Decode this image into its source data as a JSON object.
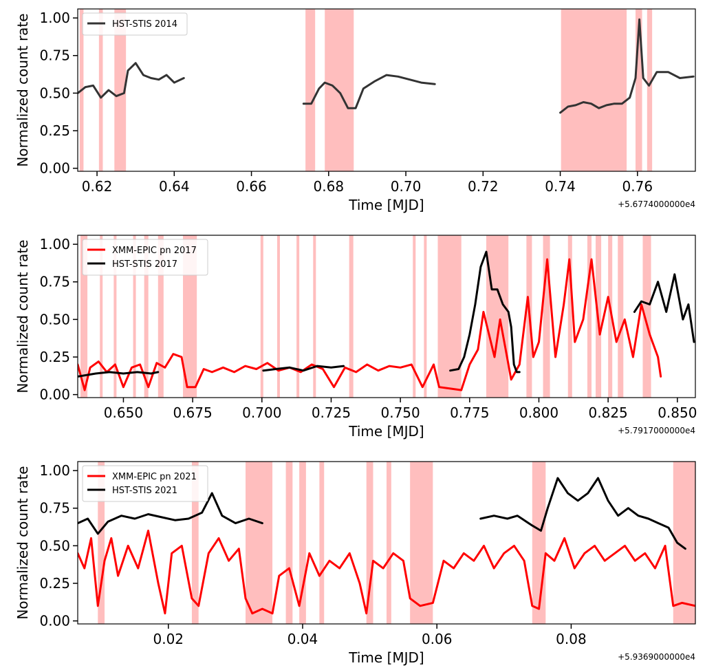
{
  "chart_data": [
    {
      "type": "line",
      "xlabel": "Time [MJD]",
      "ylabel": "Normalized count rate",
      "offset_text": "+5.6774000000e4",
      "xlim": [
        0.615,
        0.775
      ],
      "ylim": [
        -0.02,
        1.06
      ],
      "xticks": [
        0.62,
        0.64,
        0.66,
        0.68,
        0.7,
        0.72,
        0.74,
        0.76
      ],
      "xtick_labels": [
        "0.62",
        "0.64",
        "0.66",
        "0.68",
        "0.70",
        "0.72",
        "0.74",
        "0.76"
      ],
      "yticks": [
        0.0,
        0.25,
        0.5,
        0.75,
        1.0
      ],
      "ytick_labels": [
        "0.00",
        "0.25",
        "0.50",
        "0.75",
        "1.00"
      ],
      "legend_position": "top-left",
      "shaded_color": "#ffb3b3",
      "shaded_regions": [
        [
          0.6155,
          0.6165
        ],
        [
          0.6205,
          0.6215
        ],
        [
          0.6245,
          0.6275
        ],
        [
          0.674,
          0.6765
        ],
        [
          0.679,
          0.6865
        ],
        [
          0.7402,
          0.7572
        ],
        [
          0.7595,
          0.7612
        ],
        [
          0.7625,
          0.7638
        ]
      ],
      "series": [
        {
          "name": "HST-STIS 2014",
          "color": "#333333",
          "segments": [
            {
              "x": [
                0.615,
                0.617,
                0.619,
                0.621,
                0.623,
                0.625,
                0.627,
                0.628,
                0.63,
                0.632,
                0.634,
                0.636,
                0.638,
                0.64,
                0.6425
              ],
              "y": [
                0.5,
                0.54,
                0.55,
                0.47,
                0.52,
                0.48,
                0.5,
                0.65,
                0.7,
                0.62,
                0.6,
                0.59,
                0.62,
                0.57,
                0.6
              ]
            },
            {
              "x": [
                0.6735,
                0.6755,
                0.6775,
                0.679,
                0.681,
                0.683,
                0.685,
                0.687,
                0.689,
                0.692,
                0.695,
                0.698,
                0.701,
                0.704,
                0.7075
              ],
              "y": [
                0.43,
                0.43,
                0.53,
                0.57,
                0.55,
                0.5,
                0.4,
                0.4,
                0.53,
                0.58,
                0.62,
                0.61,
                0.59,
                0.57,
                0.56
              ]
            },
            {
              "x": [
                0.74,
                0.742,
                0.744,
                0.746,
                0.748,
                0.75,
                0.752,
                0.754,
                0.756,
                0.758,
                0.7595,
                0.7605,
                0.7615,
                0.763,
                0.765,
                0.768,
                0.771,
                0.7745
              ],
              "y": [
                0.37,
                0.41,
                0.42,
                0.44,
                0.43,
                0.4,
                0.42,
                0.43,
                0.43,
                0.47,
                0.6,
                0.99,
                0.6,
                0.55,
                0.64,
                0.64,
                0.6,
                0.61
              ]
            }
          ]
        }
      ]
    },
    {
      "type": "line",
      "xlabel": "Time [MJD]",
      "ylabel": "Normalized count rate",
      "offset_text": "+5.7917000000e4",
      "xlim": [
        0.6335,
        0.8565
      ],
      "ylim": [
        -0.02,
        1.06
      ],
      "xticks": [
        0.65,
        0.675,
        0.7,
        0.725,
        0.75,
        0.775,
        0.8,
        0.825,
        0.85
      ],
      "xtick_labels": [
        "0.650",
        "0.675",
        "0.700",
        "0.725",
        "0.750",
        "0.775",
        "0.800",
        "0.825",
        "0.850"
      ],
      "yticks": [
        0.0,
        0.25,
        0.5,
        0.75,
        1.0
      ],
      "ytick_labels": [
        "0.00",
        "0.25",
        "0.50",
        "0.75",
        "1.00"
      ],
      "legend_position": "top-left",
      "shaded_color": "#ffb3b3",
      "shaded_regions": [
        [
          0.6345,
          0.637
        ],
        [
          0.6415,
          0.6425
        ],
        [
          0.6465,
          0.6475
        ],
        [
          0.6535,
          0.6545
        ],
        [
          0.6575,
          0.659
        ],
        [
          0.6625,
          0.6645
        ],
        [
          0.6715,
          0.6765
        ],
        [
          0.6995,
          0.7005
        ],
        [
          0.7055,
          0.7065
        ],
        [
          0.7125,
          0.7135
        ],
        [
          0.7185,
          0.7195
        ],
        [
          0.7315,
          0.733
        ],
        [
          0.7545,
          0.7555
        ],
        [
          0.7585,
          0.7595
        ],
        [
          0.7635,
          0.772
        ],
        [
          0.781,
          0.789
        ],
        [
          0.7955,
          0.7975
        ],
        [
          0.8015,
          0.804
        ],
        [
          0.8105,
          0.812
        ],
        [
          0.8175,
          0.819
        ],
        [
          0.8205,
          0.8225
        ],
        [
          0.825,
          0.8265
        ],
        [
          0.8285,
          0.8305
        ],
        [
          0.8375,
          0.8405
        ]
      ],
      "series": [
        {
          "name": "XMM-EPIC pn 2017",
          "color": "#ff0000",
          "x": [
            0.6335,
            0.636,
            0.638,
            0.641,
            0.644,
            0.647,
            0.65,
            0.653,
            0.656,
            0.659,
            0.662,
            0.665,
            0.668,
            0.671,
            0.673,
            0.676,
            0.679,
            0.682,
            0.686,
            0.69,
            0.694,
            0.698,
            0.702,
            0.706,
            0.71,
            0.714,
            0.718,
            0.722,
            0.726,
            0.73,
            0.734,
            0.738,
            0.742,
            0.746,
            0.75,
            0.754,
            0.758,
            0.762,
            0.764,
            0.768,
            0.772,
            0.775,
            0.778,
            0.78,
            0.782,
            0.784,
            0.786,
            0.788,
            0.79,
            0.793,
            0.796,
            0.798,
            0.8,
            0.803,
            0.806,
            0.809,
            0.811,
            0.813,
            0.816,
            0.819,
            0.822,
            0.825,
            0.828,
            0.831,
            0.834,
            0.837,
            0.84,
            0.843,
            0.844
          ],
          "y": [
            0.2,
            0.03,
            0.18,
            0.22,
            0.15,
            0.2,
            0.05,
            0.18,
            0.2,
            0.05,
            0.21,
            0.18,
            0.27,
            0.25,
            0.05,
            0.05,
            0.17,
            0.15,
            0.18,
            0.15,
            0.19,
            0.17,
            0.21,
            0.16,
            0.18,
            0.15,
            0.2,
            0.17,
            0.05,
            0.18,
            0.15,
            0.2,
            0.16,
            0.19,
            0.18,
            0.2,
            0.05,
            0.2,
            0.05,
            0.04,
            0.03,
            0.2,
            0.3,
            0.55,
            0.4,
            0.25,
            0.5,
            0.3,
            0.1,
            0.2,
            0.65,
            0.25,
            0.35,
            0.9,
            0.25,
            0.6,
            0.9,
            0.35,
            0.5,
            0.9,
            0.4,
            0.65,
            0.35,
            0.5,
            0.25,
            0.6,
            0.4,
            0.25,
            0.12
          ]
        },
        {
          "name": "HST-STIS 2017",
          "color": "#000000",
          "segments": [
            {
              "x": [
                0.6335,
                0.64,
                0.645,
                0.65,
                0.655,
                0.66,
                0.6625
              ],
              "y": [
                0.12,
                0.14,
                0.15,
                0.14,
                0.15,
                0.14,
                0.15
              ]
            },
            {
              "x": [
                0.7005,
                0.705,
                0.71,
                0.715,
                0.72,
                0.725,
                0.7295
              ],
              "y": [
                0.16,
                0.17,
                0.18,
                0.16,
                0.19,
                0.18,
                0.19
              ]
            },
            {
              "x": [
                0.768,
                0.771,
                0.773,
                0.775,
                0.777,
                0.779,
                0.781,
                0.783,
                0.785,
                0.787,
                0.789,
                0.79,
                0.791,
                0.792,
                0.793
              ],
              "y": [
                0.16,
                0.17,
                0.25,
                0.4,
                0.6,
                0.85,
                0.95,
                0.7,
                0.7,
                0.6,
                0.55,
                0.45,
                0.2,
                0.15,
                0.15
              ]
            },
            {
              "x": [
                0.8345,
                0.837,
                0.84,
                0.843,
                0.846,
                0.849,
                0.852,
                0.854,
                0.856
              ],
              "y": [
                0.55,
                0.62,
                0.6,
                0.75,
                0.55,
                0.8,
                0.5,
                0.6,
                0.35
              ]
            }
          ]
        }
      ]
    },
    {
      "type": "line",
      "xlabel": "Time [MJD]",
      "ylabel": "Normalized count rate",
      "offset_text": "+5.9369000000e4",
      "xlim": [
        0.0065,
        0.0985
      ],
      "ylim": [
        -0.02,
        1.06
      ],
      "xticks": [
        0.02,
        0.04,
        0.06,
        0.08
      ],
      "xtick_labels": [
        "0.02",
        "0.04",
        "0.06",
        "0.08"
      ],
      "yticks": [
        0.0,
        0.25,
        0.5,
        0.75,
        1.0
      ],
      "ytick_labels": [
        "0.00",
        "0.25",
        "0.50",
        "0.75",
        "1.00"
      ],
      "legend_position": "top-left",
      "shaded_color": "#ffb3b3",
      "shaded_regions": [
        [
          0.0095,
          0.0105
        ],
        [
          0.0235,
          0.0245
        ],
        [
          0.0315,
          0.0355
        ],
        [
          0.0375,
          0.0385
        ],
        [
          0.0395,
          0.0405
        ],
        [
          0.0425,
          0.0432
        ],
        [
          0.0495,
          0.0505
        ],
        [
          0.0525,
          0.0532
        ],
        [
          0.056,
          0.0594
        ],
        [
          0.0742,
          0.0762
        ],
        [
          0.0952,
          0.0985
        ]
      ],
      "series": [
        {
          "name": "XMM-EPIC pn 2021",
          "color": "#ff0000",
          "x": [
            0.0065,
            0.0075,
            0.0085,
            0.0095,
            0.0105,
            0.0115,
            0.0125,
            0.014,
            0.0155,
            0.017,
            0.0185,
            0.0195,
            0.0205,
            0.022,
            0.0235,
            0.0245,
            0.026,
            0.0275,
            0.029,
            0.0305,
            0.0315,
            0.0325,
            0.034,
            0.0355,
            0.0365,
            0.038,
            0.0395,
            0.041,
            0.0425,
            0.044,
            0.0455,
            0.047,
            0.0485,
            0.0495,
            0.0505,
            0.052,
            0.0535,
            0.055,
            0.056,
            0.0575,
            0.0594,
            0.061,
            0.0625,
            0.064,
            0.0655,
            0.067,
            0.0685,
            0.07,
            0.0715,
            0.073,
            0.0742,
            0.0752,
            0.0762,
            0.0775,
            0.079,
            0.0805,
            0.082,
            0.0835,
            0.085,
            0.0865,
            0.088,
            0.0895,
            0.091,
            0.0925,
            0.094,
            0.0952,
            0.0965,
            0.0985
          ],
          "y": [
            0.45,
            0.35,
            0.55,
            0.1,
            0.4,
            0.55,
            0.3,
            0.5,
            0.35,
            0.6,
            0.25,
            0.05,
            0.45,
            0.5,
            0.15,
            0.1,
            0.45,
            0.55,
            0.4,
            0.48,
            0.15,
            0.05,
            0.08,
            0.05,
            0.3,
            0.35,
            0.1,
            0.45,
            0.3,
            0.4,
            0.35,
            0.45,
            0.25,
            0.05,
            0.4,
            0.35,
            0.45,
            0.4,
            0.15,
            0.1,
            0.12,
            0.4,
            0.35,
            0.45,
            0.4,
            0.5,
            0.35,
            0.45,
            0.5,
            0.4,
            0.1,
            0.08,
            0.45,
            0.4,
            0.55,
            0.35,
            0.45,
            0.5,
            0.4,
            0.45,
            0.5,
            0.4,
            0.45,
            0.35,
            0.5,
            0.1,
            0.12,
            0.1
          ]
        },
        {
          "name": "HST-STIS 2021",
          "color": "#000000",
          "segments": [
            {
              "x": [
                0.0065,
                0.008,
                0.0095,
                0.011,
                0.013,
                0.015,
                0.017,
                0.019,
                0.021,
                0.023,
                0.025,
                0.0265,
                0.028,
                0.03,
                0.032,
                0.034
              ],
              "y": [
                0.65,
                0.68,
                0.58,
                0.66,
                0.7,
                0.68,
                0.71,
                0.69,
                0.67,
                0.68,
                0.72,
                0.85,
                0.7,
                0.65,
                0.68,
                0.65
              ]
            },
            {
              "x": [
                0.0665,
                0.0685,
                0.0705,
                0.072,
                0.074,
                0.0755,
                0.0765,
                0.078,
                0.0795,
                0.081,
                0.0825,
                0.084,
                0.0855,
                0.087,
                0.0885,
                0.09,
                0.0915,
                0.093,
                0.0945,
                0.0958,
                0.097
              ],
              "y": [
                0.68,
                0.7,
                0.68,
                0.7,
                0.64,
                0.6,
                0.75,
                0.95,
                0.85,
                0.8,
                0.85,
                0.95,
                0.8,
                0.7,
                0.75,
                0.7,
                0.68,
                0.65,
                0.62,
                0.52,
                0.48
              ]
            }
          ]
        }
      ]
    }
  ]
}
